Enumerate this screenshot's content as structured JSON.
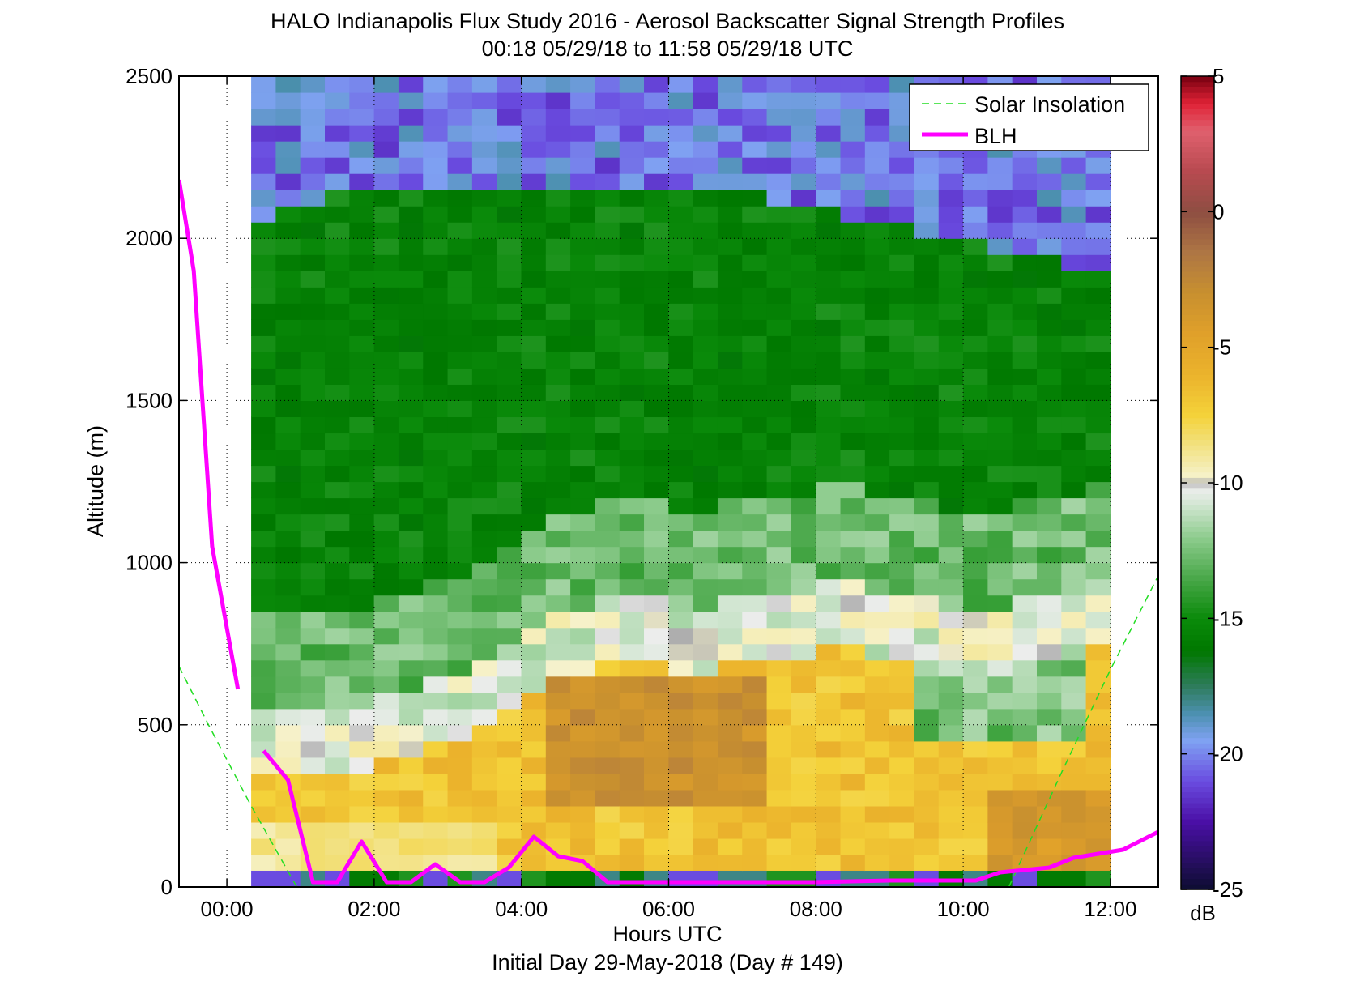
{
  "chart_data": {
    "type": "heatmap",
    "title": "HALO Indianapolis Flux Study 2016 - Aerosol Backscatter Signal Strength Profiles",
    "subtitle": "00:18 05/29/18 to 11:58 05/29/18  UTC",
    "xlabel": "Hours UTC",
    "xlabel2": "Initial Day 29-May-2018 (Day # 149)",
    "ylabel": "Altitude (m)",
    "xlim_hours": [
      -0.65,
      12.65
    ],
    "ylim": [
      0,
      2500
    ],
    "x_ticks": [
      {
        "value": 0,
        "label": "00:00"
      },
      {
        "value": 2,
        "label": "02:00"
      },
      {
        "value": 4,
        "label": "04:00"
      },
      {
        "value": 6,
        "label": "06:00"
      },
      {
        "value": 8,
        "label": "08:00"
      },
      {
        "value": 10,
        "label": "10:00"
      },
      {
        "value": 12,
        "label": "12:00"
      }
    ],
    "y_ticks": [
      0,
      500,
      1000,
      1500,
      2000,
      2500
    ],
    "grid": "dotted",
    "legend_placement": "top-right",
    "legend": [
      {
        "name": "Solar Insolation",
        "style": "dashed",
        "color": "#22dd22"
      },
      {
        "name": "BLH",
        "style": "solid",
        "color": "#ff00ff"
      }
    ],
    "colorbar": {
      "label": "dB",
      "range": [
        -25,
        5
      ],
      "ticks": [
        5,
        0,
        -5,
        -10,
        -15,
        -20,
        -25
      ],
      "stops": [
        {
          "v": -25,
          "c": "#0d0d30"
        },
        {
          "v": -22.5,
          "c": "#4a0fa6"
        },
        {
          "v": -21,
          "c": "#6a4ce0"
        },
        {
          "v": -19.5,
          "c": "#7fa2f2"
        },
        {
          "v": -18.5,
          "c": "#4c90b0"
        },
        {
          "v": -17.5,
          "c": "#2e7c5c"
        },
        {
          "v": -16.2,
          "c": "#007800"
        },
        {
          "v": -15,
          "c": "#0a8a0a"
        },
        {
          "v": -13.5,
          "c": "#4aa84a"
        },
        {
          "v": -12,
          "c": "#8ecc8e"
        },
        {
          "v": -10.8,
          "c": "#d2e6d2"
        },
        {
          "v": -10.2,
          "c": "#ededed"
        },
        {
          "v": -10,
          "c": "#aaaaaa"
        },
        {
          "v": -9.8,
          "c": "#f6f2cc"
        },
        {
          "v": -8.5,
          "c": "#f2e07a"
        },
        {
          "v": -7.5,
          "c": "#f4d23a"
        },
        {
          "v": -6,
          "c": "#ebb32c"
        },
        {
          "v": -4.5,
          "c": "#e0a02a"
        },
        {
          "v": -3,
          "c": "#c8902f"
        },
        {
          "v": -1.5,
          "c": "#ae7644"
        },
        {
          "v": 0,
          "c": "#8e4e42"
        },
        {
          "v": 1.5,
          "c": "#b84a50"
        },
        {
          "v": 3,
          "c": "#e0606e"
        },
        {
          "v": 4,
          "c": "#e02236"
        },
        {
          "v": 5,
          "c": "#780010"
        }
      ]
    },
    "heatmap": {
      "x_start_hours": 0.33,
      "x_end_hours": 12,
      "n_columns": 35,
      "y_start_m": 50,
      "y_end_m": 2500,
      "n_rows": 49,
      "bottom_row_m": [
        0,
        50
      ],
      "values_note": "signal strength in dB"
    },
    "blh_segments": [
      [
        [
          -0.65,
          2180
        ],
        [
          -0.45,
          1900
        ],
        [
          -0.2,
          1050
        ],
        [
          0.15,
          610
        ]
      ],
      [
        [
          0.5,
          420
        ],
        [
          0.83,
          330
        ],
        [
          1.17,
          15
        ],
        [
          1.5,
          15
        ],
        [
          1.83,
          140
        ],
        [
          2.17,
          15
        ],
        [
          2.5,
          15
        ],
        [
          2.83,
          70
        ],
        [
          3.17,
          15
        ],
        [
          3.5,
          15
        ],
        [
          3.83,
          60
        ],
        [
          4.17,
          155
        ],
        [
          4.5,
          95
        ],
        [
          4.83,
          80
        ],
        [
          5.17,
          15
        ],
        [
          6.0,
          15
        ],
        [
          7.0,
          15
        ],
        [
          8.0,
          15
        ],
        [
          9.0,
          20
        ],
        [
          10.17,
          20
        ],
        [
          10.5,
          45
        ],
        [
          11.17,
          60
        ],
        [
          11.5,
          90
        ],
        [
          12.17,
          115
        ],
        [
          12.65,
          170
        ]
      ]
    ],
    "solar_insolation_segments": [
      [
        [
          -0.65,
          680
        ],
        [
          -0.25,
          500
        ],
        [
          0.33,
          250
        ],
        [
          0.95,
          0
        ]
      ],
      [
        [
          10.62,
          0
        ],
        [
          11.33,
          350
        ],
        [
          12.0,
          670
        ],
        [
          12.65,
          960
        ]
      ]
    ]
  }
}
